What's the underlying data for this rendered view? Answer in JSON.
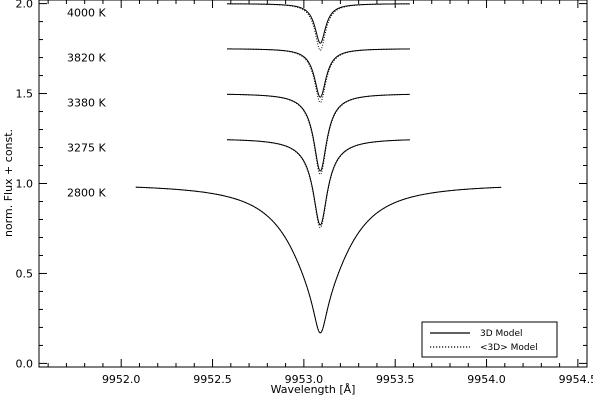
{
  "chart_data": {
    "type": "line",
    "title": "",
    "xlabel": "Wavelength [Å]",
    "ylabel": "norm. Flux + const.",
    "xlim": [
      9951.55,
      9954.55
    ],
    "ylim": [
      -0.02,
      2.02
    ],
    "xticks": [
      "9952.0",
      "9952.5",
      "9953.0",
      "9953.5",
      "9954.0",
      "9954.5"
    ],
    "yticks": [
      "0.0",
      "0.5",
      "1.0",
      "1.5",
      "2.0"
    ],
    "grid": false,
    "legend_position": "bottom-right",
    "legend": [
      {
        "label": "3D Model",
        "style": "solid"
      },
      {
        "label": "<3D> Model",
        "style": "dotted"
      }
    ],
    "line_center": 9953.09,
    "series": [
      {
        "temperature": "2800 K",
        "x_range": [
          9952.08,
          9954.08
        ],
        "continuum": 1.0,
        "solid_min": 0.17,
        "solid_hwhm": 0.045,
        "solid_wing_width": 0.19,
        "solid_wing_depth": 0.7,
        "dotted_min": 0.17,
        "dotted_hwhm": 0.045,
        "dotted_wing_width": 0.19,
        "dotted_wing_depth": 0.7
      },
      {
        "temperature": "3275 K",
        "x_range": [
          9952.58,
          9953.58
        ],
        "continuum": 1.25,
        "solid_min": 0.77,
        "solid_hwhm": 0.045,
        "solid_wing_width": 0.12,
        "solid_wing_depth": 0.14,
        "dotted_min": 0.755,
        "dotted_hwhm": 0.045,
        "dotted_wing_width": 0.12,
        "dotted_wing_depth": 0.14
      },
      {
        "temperature": "3380 K",
        "x_range": [
          9952.58,
          9953.58
        ],
        "continuum": 1.5,
        "solid_min": 1.07,
        "solid_hwhm": 0.042,
        "solid_wing_width": 0.1,
        "solid_wing_depth": 0.1,
        "dotted_min": 1.05,
        "dotted_hwhm": 0.042,
        "dotted_wing_width": 0.1,
        "dotted_wing_depth": 0.1
      },
      {
        "temperature": "3820 K",
        "x_range": [
          9952.58,
          9953.58
        ],
        "continuum": 1.75,
        "solid_min": 1.48,
        "solid_hwhm": 0.038,
        "solid_wing_width": 0.09,
        "solid_wing_depth": 0.05,
        "dotted_min": 1.45,
        "dotted_hwhm": 0.038,
        "dotted_wing_width": 0.09,
        "dotted_wing_depth": 0.05
      },
      {
        "temperature": "4000 K",
        "x_range": [
          9952.58,
          9953.58
        ],
        "continuum": 2.0,
        "solid_min": 1.78,
        "solid_hwhm": 0.035,
        "solid_wing_width": 0.08,
        "solid_wing_depth": 0.03,
        "dotted_min": 1.74,
        "dotted_hwhm": 0.035,
        "dotted_wing_width": 0.08,
        "dotted_wing_depth": 0.03
      }
    ]
  }
}
